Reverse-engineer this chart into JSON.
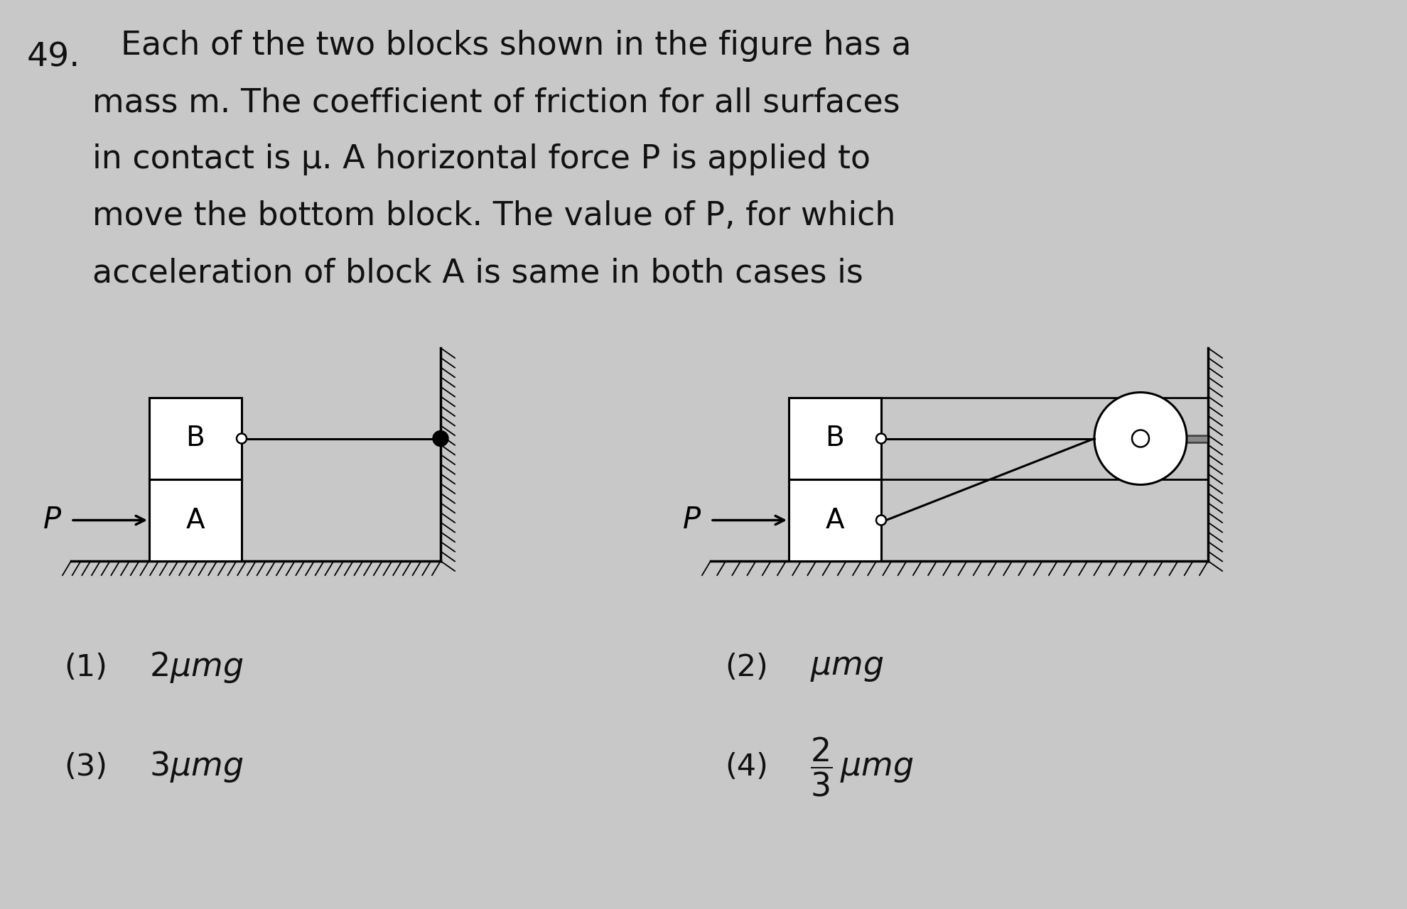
{
  "bg_color": "#c8c8c8",
  "text_color": "#111111",
  "q_num": "49.",
  "q_lines": [
    "Each of the two blocks shown in the figure has a",
    "mass m. The coefficient of friction for all surfaces",
    "in contact is μ. A horizontal force P is applied to",
    "move the bottom block. The value of P, for which",
    "acceleration of block A is same in both cases is"
  ],
  "fig_width": 19.81,
  "fig_height": 12.8,
  "dpi": 100
}
